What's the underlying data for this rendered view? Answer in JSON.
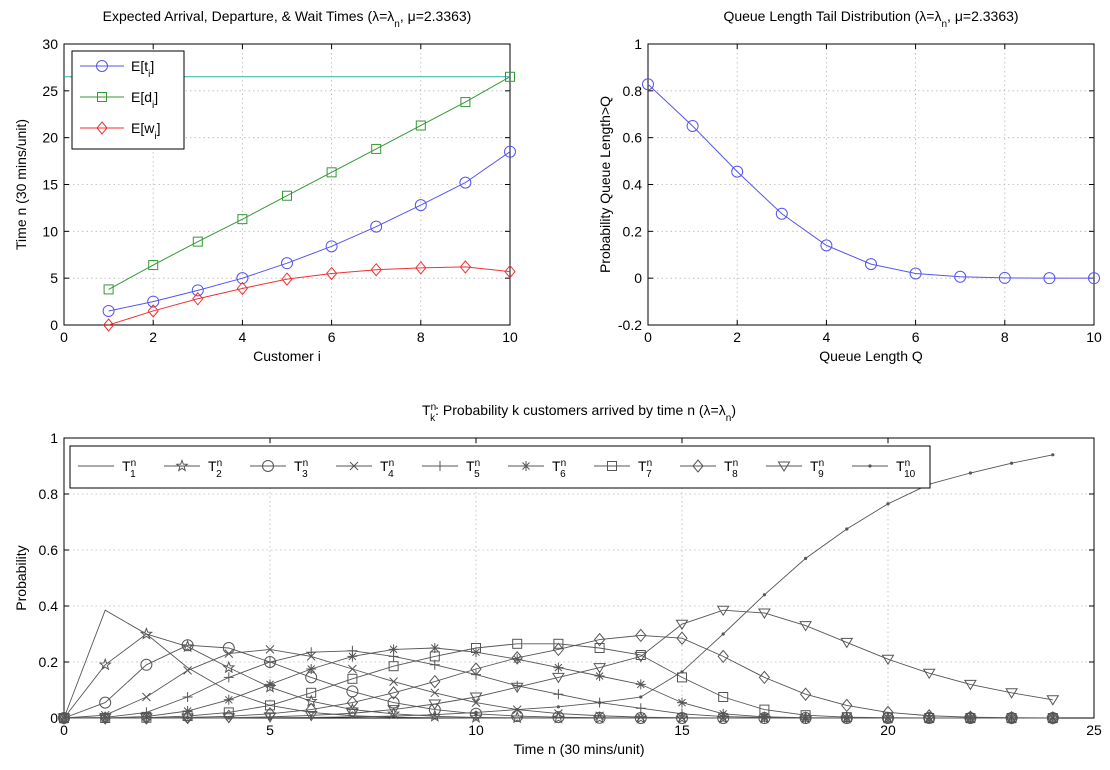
{
  "colors": {
    "blue": "#5555ee",
    "green": "#339933",
    "red": "#ee3333",
    "teal": "#2ab3a0",
    "gray": "#555555"
  },
  "chart_data": [
    {
      "type": "line",
      "title_main": "Expected Arrival, Departure, & Wait Times (λ=λ",
      "title_sub": "n",
      "title_tail": ", μ=2.3363)",
      "xlabel": "Customer i",
      "ylabel": "Time n (30 mins/unit)",
      "xlim": [
        0,
        10
      ],
      "ylim": [
        0,
        30
      ],
      "xticks": [
        0,
        2,
        4,
        6,
        8,
        10
      ],
      "yticks": [
        0,
        5,
        10,
        15,
        20,
        25,
        30
      ],
      "grid": true,
      "legend_position": "top-left",
      "reference_line_y": 26.5,
      "x": [
        1,
        2,
        3,
        4,
        5,
        6,
        7,
        8,
        9,
        10
      ],
      "series": [
        {
          "name": "E[t",
          "sub": "i",
          "close": "]",
          "marker": "circle",
          "color": "#5555ee",
          "values": [
            1.5,
            2.5,
            3.7,
            5.0,
            6.6,
            8.4,
            10.5,
            12.8,
            15.2,
            18.5
          ]
        },
        {
          "name": "E[d",
          "sub": "i",
          "close": "]",
          "marker": "square",
          "color": "#339933",
          "values": [
            3.8,
            6.4,
            8.9,
            11.3,
            13.8,
            16.3,
            18.8,
            21.3,
            23.8,
            26.5
          ]
        },
        {
          "name": "E[w",
          "sub": "i",
          "close": "]",
          "marker": "diamond",
          "color": "#ee3333",
          "values": [
            0.0,
            1.5,
            2.8,
            3.9,
            4.9,
            5.5,
            5.9,
            6.1,
            6.2,
            5.7
          ]
        }
      ]
    },
    {
      "type": "line",
      "title_main": "Queue Length Tail Distribution (λ=λ",
      "title_sub": "n",
      "title_tail": ", μ=2.3363)",
      "xlabel": "Queue Length Q",
      "ylabel": "Probability Queue Length>Q",
      "xlim": [
        0,
        10
      ],
      "ylim": [
        -0.2,
        1
      ],
      "xticks": [
        0,
        2,
        4,
        6,
        8,
        10
      ],
      "yticks": [
        -0.2,
        0,
        0.2,
        0.4,
        0.6,
        0.8,
        1
      ],
      "grid": true,
      "x": [
        0,
        1,
        2,
        3,
        4,
        5,
        6,
        7,
        8,
        9,
        10
      ],
      "series": [
        {
          "marker": "circle",
          "color": "#5555ee",
          "values": [
            0.828,
            0.65,
            0.455,
            0.275,
            0.14,
            0.06,
            0.02,
            0.006,
            0.001,
            0.0,
            0.0
          ]
        }
      ]
    },
    {
      "type": "line",
      "title_pre": "T",
      "title_sup": "n",
      "title_sub": "k",
      "title_main": ": Probability k customers arrived by time n (λ=λ",
      "title_sub2": "n",
      "title_tail": ")",
      "xlabel": "Time n (30 mins/unit)",
      "ylabel": "Probability",
      "xlim": [
        0,
        25
      ],
      "ylim": [
        0,
        1
      ],
      "xticks": [
        0,
        5,
        10,
        15,
        20,
        25
      ],
      "yticks": [
        0,
        0.2,
        0.4,
        0.6,
        0.8,
        1
      ],
      "grid": true,
      "legend_position": "top-left",
      "x": [
        0,
        1,
        2,
        3,
        4,
        5,
        6,
        7,
        8,
        9,
        10,
        11,
        12,
        13,
        14,
        15,
        16,
        17,
        18,
        19,
        20,
        21,
        22,
        23,
        24
      ],
      "series": [
        {
          "name": "T",
          "sub": "1",
          "sup": "n",
          "marker": "none",
          "values": [
            0,
            0.385,
            0.3,
            0.18,
            0.095,
            0.045,
            0.02,
            0.008,
            0.003,
            0.001,
            0,
            0,
            0,
            0,
            0,
            0,
            0,
            0,
            0,
            0,
            0,
            0,
            0,
            0,
            0
          ]
        },
        {
          "name": "T",
          "sub": "2",
          "sup": "n",
          "marker": "star",
          "values": [
            0,
            0.19,
            0.3,
            0.255,
            0.18,
            0.11,
            0.06,
            0.03,
            0.015,
            0.006,
            0.002,
            0.001,
            0,
            0,
            0,
            0,
            0,
            0,
            0,
            0,
            0,
            0,
            0,
            0,
            0
          ]
        },
        {
          "name": "T",
          "sub": "3",
          "sup": "n",
          "marker": "circle",
          "values": [
            0,
            0.055,
            0.19,
            0.26,
            0.25,
            0.2,
            0.145,
            0.095,
            0.055,
            0.03,
            0.015,
            0.007,
            0.003,
            0.001,
            0,
            0,
            0,
            0,
            0,
            0,
            0,
            0,
            0,
            0,
            0
          ]
        },
        {
          "name": "T",
          "sub": "4",
          "sup": "n",
          "marker": "x",
          "values": [
            0,
            0.01,
            0.075,
            0.17,
            0.23,
            0.245,
            0.22,
            0.175,
            0.13,
            0.09,
            0.055,
            0.03,
            0.016,
            0.008,
            0.003,
            0.001,
            0,
            0,
            0,
            0,
            0,
            0,
            0,
            0,
            0
          ]
        },
        {
          "name": "T",
          "sub": "5",
          "sup": "n",
          "marker": "plus",
          "values": [
            0,
            0.002,
            0.02,
            0.075,
            0.145,
            0.2,
            0.235,
            0.24,
            0.22,
            0.19,
            0.155,
            0.115,
            0.085,
            0.055,
            0.035,
            0.015,
            0.005,
            0.002,
            0,
            0,
            0,
            0,
            0,
            0,
            0
          ]
        },
        {
          "name": "T",
          "sub": "6",
          "sup": "n",
          "marker": "asterisk",
          "values": [
            0,
            0,
            0.005,
            0.025,
            0.065,
            0.12,
            0.175,
            0.22,
            0.245,
            0.25,
            0.235,
            0.21,
            0.18,
            0.15,
            0.12,
            0.055,
            0.015,
            0.004,
            0.001,
            0,
            0,
            0,
            0,
            0,
            0
          ]
        },
        {
          "name": "T",
          "sub": "7",
          "sup": "n",
          "marker": "square",
          "values": [
            0,
            0,
            0.001,
            0.007,
            0.02,
            0.045,
            0.09,
            0.14,
            0.185,
            0.22,
            0.25,
            0.265,
            0.265,
            0.25,
            0.225,
            0.145,
            0.075,
            0.03,
            0.01,
            0.003,
            0.001,
            0,
            0,
            0,
            0
          ]
        },
        {
          "name": "T",
          "sub": "8",
          "sup": "n",
          "marker": "diamond",
          "values": [
            0,
            0,
            0,
            0.002,
            0.006,
            0.015,
            0.03,
            0.055,
            0.09,
            0.13,
            0.175,
            0.215,
            0.245,
            0.28,
            0.295,
            0.285,
            0.22,
            0.145,
            0.085,
            0.045,
            0.02,
            0.008,
            0.003,
            0.001,
            0
          ]
        },
        {
          "name": "T",
          "sub": "9",
          "sup": "n",
          "marker": "triangle-down",
          "values": [
            0,
            0,
            0,
            0,
            0.001,
            0.004,
            0.009,
            0.017,
            0.03,
            0.05,
            0.075,
            0.11,
            0.145,
            0.18,
            0.22,
            0.335,
            0.385,
            0.375,
            0.33,
            0.27,
            0.21,
            0.16,
            0.12,
            0.09,
            0.065
          ]
        },
        {
          "name": "T",
          "sub": "10",
          "sup": "n",
          "marker": "dot",
          "values": [
            0,
            0,
            0,
            0,
            0,
            0.001,
            0.002,
            0.004,
            0.007,
            0.012,
            0.02,
            0.03,
            0.04,
            0.055,
            0.075,
            0.165,
            0.3,
            0.44,
            0.57,
            0.675,
            0.765,
            0.835,
            0.875,
            0.91,
            0.94
          ]
        }
      ]
    }
  ]
}
